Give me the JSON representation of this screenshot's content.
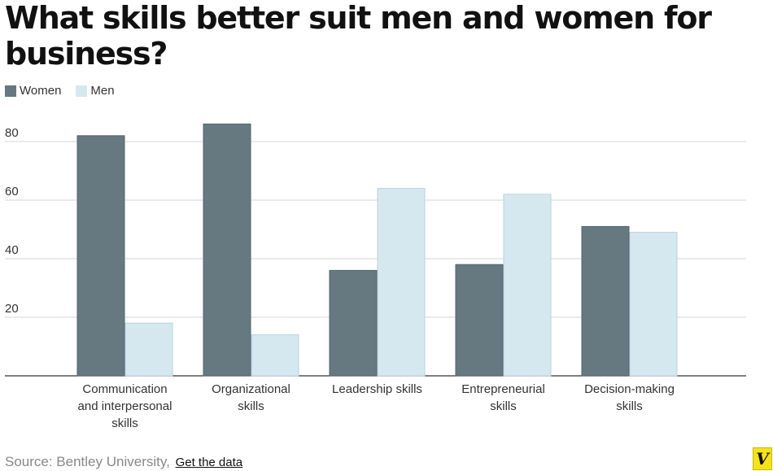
{
  "title": "What skills better suit men and women for business?",
  "legend": [
    {
      "label": "Women",
      "color": "#667880"
    },
    {
      "label": "Men",
      "color": "#d5e8ef"
    }
  ],
  "footer": {
    "source": "Source: Bentley University,",
    "link": "Get the data"
  },
  "logo": "V",
  "chart_data": {
    "type": "bar",
    "title": "What skills better suit men and women for business?",
    "categories": [
      [
        "Communication",
        "and interpersonal",
        "skills"
      ],
      [
        "Organizational",
        "skills"
      ],
      [
        "Leadership skills"
      ],
      [
        "Entrepreneurial",
        "skills"
      ],
      [
        "Decision-making",
        "skills"
      ]
    ],
    "series": [
      {
        "name": "Women",
        "values": [
          82,
          86,
          36,
          38,
          51
        ]
      },
      {
        "name": "Men",
        "values": [
          18,
          14,
          64,
          62,
          49
        ]
      }
    ],
    "ylim": [
      0,
      90
    ],
    "yticks": [
      20,
      40,
      60,
      80
    ],
    "grid": true,
    "legend_position": "top-left"
  }
}
